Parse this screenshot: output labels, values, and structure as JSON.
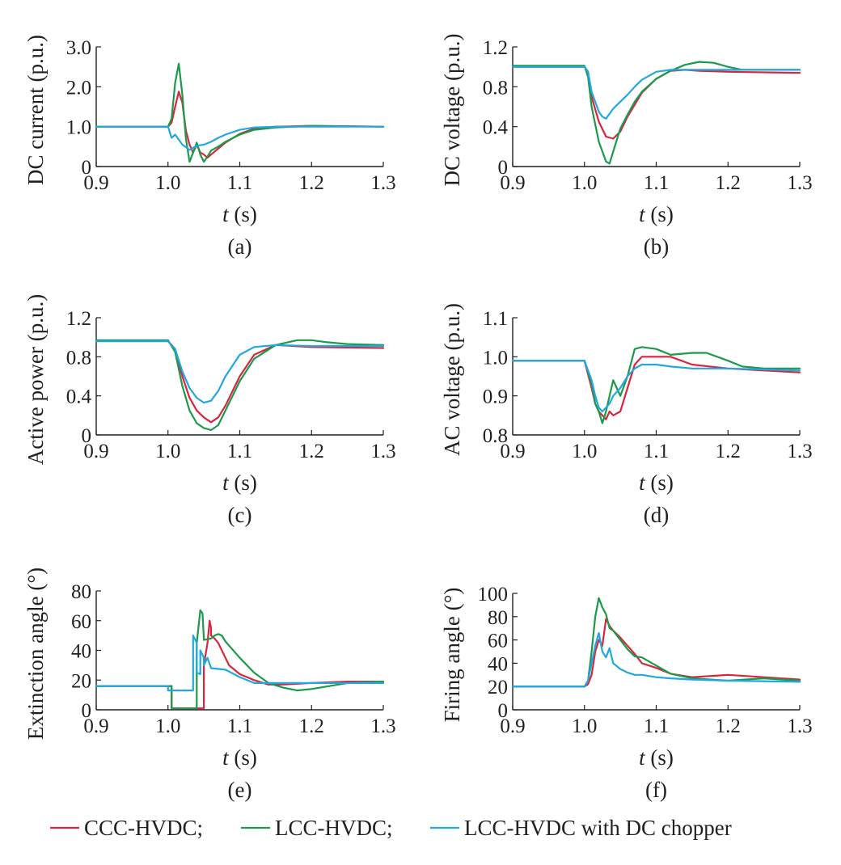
{
  "colors": {
    "ccc": "#d7263d",
    "lcc": "#1a9a4a",
    "chopper": "#22a7e0",
    "axis": "#231f20"
  },
  "legend": {
    "items": [
      {
        "key": "ccc",
        "label": "CCC-HVDC;"
      },
      {
        "key": "lcc",
        "label": "LCC-HVDC;"
      },
      {
        "key": "chopper",
        "label": "LCC-HVDC with DC chopper"
      }
    ]
  },
  "chart_data": [
    {
      "id": "a",
      "type": "line",
      "panel_label": "(a)",
      "ylabel": "DC current (p.u.)",
      "xlabel_italic": "t",
      "xlabel_rest": " (s)",
      "xlim": [
        0.9,
        1.3
      ],
      "ylim": [
        0,
        3.0
      ],
      "xticks": [
        "0.9",
        "1.0",
        "1.1",
        "1.2",
        "1.3"
      ],
      "xtick_values": [
        0.9,
        1.0,
        1.1,
        1.2,
        1.3
      ],
      "yticks": [
        "0",
        "1.0",
        "2.0",
        "3.0"
      ],
      "ytick_values": [
        0,
        1.0,
        2.0,
        3.0
      ],
      "series": [
        {
          "name": "CCC-HVDC",
          "color_key": "ccc",
          "x": [
            0.9,
            1.0,
            1.005,
            1.01,
            1.015,
            1.02,
            1.025,
            1.03,
            1.035,
            1.04,
            1.045,
            1.05,
            1.055,
            1.06,
            1.07,
            1.08,
            1.1,
            1.12,
            1.15,
            1.2,
            1.3
          ],
          "y": [
            1.0,
            1.0,
            1.1,
            1.5,
            1.88,
            1.6,
            0.9,
            0.55,
            0.35,
            0.55,
            0.35,
            0.3,
            0.22,
            0.3,
            0.45,
            0.6,
            0.82,
            0.95,
            1.0,
            1.02,
            1.0
          ]
        },
        {
          "name": "LCC-HVDC",
          "color_key": "lcc",
          "x": [
            0.9,
            1.0,
            1.005,
            1.01,
            1.015,
            1.02,
            1.025,
            1.03,
            1.035,
            1.04,
            1.045,
            1.05,
            1.055,
            1.06,
            1.07,
            1.08,
            1.1,
            1.12,
            1.15,
            1.2,
            1.3
          ],
          "y": [
            1.0,
            1.0,
            1.2,
            2.1,
            2.58,
            1.8,
            0.7,
            0.12,
            0.35,
            0.6,
            0.3,
            0.12,
            0.25,
            0.4,
            0.5,
            0.62,
            0.8,
            0.92,
            0.98,
            1.02,
            1.0
          ]
        },
        {
          "name": "LCC-HVDC with DC chopper",
          "color_key": "chopper",
          "x": [
            0.9,
            1.0,
            1.005,
            1.01,
            1.02,
            1.03,
            1.04,
            1.05,
            1.06,
            1.07,
            1.08,
            1.1,
            1.12,
            1.15,
            1.2,
            1.3
          ],
          "y": [
            1.0,
            1.0,
            0.72,
            0.8,
            0.55,
            0.42,
            0.52,
            0.55,
            0.62,
            0.72,
            0.8,
            0.92,
            0.98,
            1.0,
            1.0,
            1.0
          ]
        }
      ]
    },
    {
      "id": "b",
      "type": "line",
      "panel_label": "(b)",
      "ylabel": "DC voltage (p.u.)",
      "xlabel_italic": "t",
      "xlabel_rest": " (s)",
      "xlim": [
        0.9,
        1.3
      ],
      "ylim": [
        0,
        1.2
      ],
      "xticks": [
        "0.9",
        "1.0",
        "1.1",
        "1.2",
        "1.3"
      ],
      "xtick_values": [
        0.9,
        1.0,
        1.1,
        1.2,
        1.3
      ],
      "yticks": [
        "0",
        "0.4",
        "0.8",
        "1.2"
      ],
      "ytick_values": [
        0,
        0.4,
        0.8,
        1.2
      ],
      "series": [
        {
          "name": "CCC-HVDC",
          "color_key": "ccc",
          "x": [
            0.9,
            1.0,
            1.005,
            1.01,
            1.02,
            1.03,
            1.04,
            1.05,
            1.06,
            1.07,
            1.08,
            1.1,
            1.12,
            1.14,
            1.16,
            1.2,
            1.3
          ],
          "y": [
            1.0,
            1.0,
            0.95,
            0.7,
            0.45,
            0.3,
            0.28,
            0.35,
            0.5,
            0.62,
            0.74,
            0.88,
            0.96,
            0.97,
            0.96,
            0.95,
            0.94
          ]
        },
        {
          "name": "LCC-HVDC",
          "color_key": "lcc",
          "x": [
            0.9,
            1.0,
            1.005,
            1.01,
            1.02,
            1.03,
            1.035,
            1.04,
            1.05,
            1.06,
            1.07,
            1.08,
            1.1,
            1.12,
            1.14,
            1.16,
            1.18,
            1.2,
            1.22,
            1.25,
            1.3
          ],
          "y": [
            1.01,
            1.01,
            0.9,
            0.6,
            0.25,
            0.05,
            0.03,
            0.15,
            0.38,
            0.52,
            0.65,
            0.75,
            0.88,
            0.96,
            1.02,
            1.05,
            1.04,
            1.0,
            0.97,
            0.97,
            0.97
          ]
        },
        {
          "name": "LCC-HVDC with DC chopper",
          "color_key": "chopper",
          "x": [
            0.9,
            1.0,
            1.005,
            1.01,
            1.02,
            1.025,
            1.03,
            1.04,
            1.05,
            1.06,
            1.07,
            1.08,
            1.1,
            1.12,
            1.15,
            1.2,
            1.3
          ],
          "y": [
            1.0,
            1.0,
            0.95,
            0.75,
            0.55,
            0.5,
            0.48,
            0.58,
            0.65,
            0.72,
            0.8,
            0.87,
            0.95,
            0.97,
            0.97,
            0.97,
            0.97
          ]
        }
      ]
    },
    {
      "id": "c",
      "type": "line",
      "panel_label": "(c)",
      "ylabel": "Active power (p.u.)",
      "xlabel_italic": "t",
      "xlabel_rest": " (s)",
      "xlim": [
        0.9,
        1.3
      ],
      "ylim": [
        0,
        1.2
      ],
      "xticks": [
        "0.9",
        "1.0",
        "1.1",
        "1.2",
        "1.3"
      ],
      "xtick_values": [
        0.9,
        1.0,
        1.1,
        1.2,
        1.3
      ],
      "yticks": [
        "0",
        "0.4",
        "0.8",
        "1.2"
      ],
      "ytick_values": [
        0,
        0.4,
        0.8,
        1.2
      ],
      "series": [
        {
          "name": "CCC-HVDC",
          "color_key": "ccc",
          "x": [
            0.9,
            1.0,
            1.01,
            1.02,
            1.03,
            1.04,
            1.05,
            1.06,
            1.07,
            1.08,
            1.1,
            1.12,
            1.15,
            1.2,
            1.3
          ],
          "y": [
            0.96,
            0.96,
            0.88,
            0.6,
            0.38,
            0.25,
            0.18,
            0.13,
            0.18,
            0.3,
            0.6,
            0.82,
            0.92,
            0.9,
            0.89
          ]
        },
        {
          "name": "LCC-HVDC",
          "color_key": "lcc",
          "x": [
            0.9,
            1.0,
            1.01,
            1.02,
            1.03,
            1.04,
            1.05,
            1.06,
            1.07,
            1.08,
            1.1,
            1.12,
            1.15,
            1.18,
            1.2,
            1.22,
            1.25,
            1.3
          ],
          "y": [
            0.97,
            0.97,
            0.85,
            0.5,
            0.25,
            0.12,
            0.07,
            0.05,
            0.1,
            0.25,
            0.55,
            0.78,
            0.92,
            0.97,
            0.97,
            0.95,
            0.93,
            0.92
          ]
        },
        {
          "name": "LCC-HVDC with DC chopper",
          "color_key": "chopper",
          "x": [
            0.9,
            1.0,
            1.01,
            1.02,
            1.03,
            1.04,
            1.05,
            1.06,
            1.07,
            1.08,
            1.1,
            1.12,
            1.15,
            1.2,
            1.3
          ],
          "y": [
            0.96,
            0.96,
            0.88,
            0.65,
            0.48,
            0.38,
            0.33,
            0.35,
            0.45,
            0.6,
            0.82,
            0.9,
            0.92,
            0.91,
            0.91
          ]
        }
      ]
    },
    {
      "id": "d",
      "type": "line",
      "panel_label": "(d)",
      "ylabel": "AC voltage (p.u.)",
      "xlabel_italic": "t",
      "xlabel_rest": " (s)",
      "xlim": [
        0.9,
        1.3
      ],
      "ylim": [
        0.8,
        1.1
      ],
      "xticks": [
        "0.9",
        "1.0",
        "1.1",
        "1.2",
        "1.3"
      ],
      "xtick_values": [
        0.9,
        1.0,
        1.1,
        1.2,
        1.3
      ],
      "yticks": [
        "0.8",
        "0.9",
        "1.0",
        "1.1"
      ],
      "ytick_values": [
        0.8,
        0.9,
        1.0,
        1.1
      ],
      "series": [
        {
          "name": "CCC-HVDC",
          "color_key": "ccc",
          "x": [
            0.9,
            1.0,
            1.01,
            1.015,
            1.02,
            1.025,
            1.03,
            1.035,
            1.04,
            1.05,
            1.06,
            1.07,
            1.08,
            1.1,
            1.12,
            1.15,
            1.2,
            1.25,
            1.3
          ],
          "y": [
            0.99,
            0.99,
            0.92,
            0.88,
            0.86,
            0.85,
            0.84,
            0.86,
            0.85,
            0.86,
            0.92,
            0.98,
            1.0,
            1.0,
            1.0,
            0.98,
            0.97,
            0.965,
            0.96
          ]
        },
        {
          "name": "LCC-HVDC",
          "color_key": "lcc",
          "x": [
            0.9,
            1.0,
            1.01,
            1.015,
            1.02,
            1.025,
            1.03,
            1.035,
            1.04,
            1.045,
            1.05,
            1.06,
            1.07,
            1.08,
            1.1,
            1.12,
            1.15,
            1.17,
            1.2,
            1.22,
            1.25,
            1.3
          ],
          "y": [
            0.99,
            0.99,
            0.93,
            0.88,
            0.86,
            0.83,
            0.86,
            0.9,
            0.94,
            0.92,
            0.9,
            0.95,
            1.02,
            1.025,
            1.02,
            1.005,
            1.01,
            1.01,
            0.99,
            0.975,
            0.97,
            0.97
          ]
        },
        {
          "name": "LCC-HVDC with DC chopper",
          "color_key": "chopper",
          "x": [
            0.9,
            1.0,
            1.01,
            1.015,
            1.02,
            1.025,
            1.03,
            1.035,
            1.04,
            1.05,
            1.06,
            1.07,
            1.08,
            1.1,
            1.12,
            1.15,
            1.2,
            1.3
          ],
          "y": [
            0.99,
            0.99,
            0.94,
            0.9,
            0.87,
            0.86,
            0.87,
            0.88,
            0.9,
            0.92,
            0.95,
            0.97,
            0.98,
            0.98,
            0.975,
            0.97,
            0.97,
            0.965
          ]
        }
      ]
    },
    {
      "id": "e",
      "type": "line",
      "panel_label": "(e)",
      "ylabel": "Extinction angle (°)",
      "xlabel_italic": "t",
      "xlabel_rest": " (s)",
      "xlim": [
        0.9,
        1.3
      ],
      "ylim": [
        0,
        80
      ],
      "xticks": [
        "0.9",
        "1.0",
        "1.1",
        "1.2",
        "1.3"
      ],
      "xtick_values": [
        0.9,
        1.0,
        1.1,
        1.2,
        1.3
      ],
      "yticks": [
        "0",
        "20",
        "40",
        "60",
        "80"
      ],
      "ytick_values": [
        0,
        20,
        40,
        60,
        80
      ],
      "series": [
        {
          "name": "CCC-HVDC",
          "color_key": "ccc",
          "x": [
            0.9,
            1.005,
            1.005,
            1.045,
            1.05,
            1.05,
            1.055,
            1.058,
            1.06,
            1.06,
            1.065,
            1.07,
            1.075,
            1.08,
            1.085,
            1.09,
            1.1,
            1.12,
            1.14,
            1.16,
            1.2,
            1.25,
            1.3
          ],
          "y": [
            16,
            16,
            1,
            1,
            1,
            30,
            45,
            60,
            55,
            50,
            48,
            45,
            40,
            35,
            30,
            28,
            24,
            20,
            17,
            17,
            18,
            19,
            19
          ]
        },
        {
          "name": "LCC-HVDC",
          "color_key": "lcc",
          "x": [
            0.9,
            1.005,
            1.005,
            1.04,
            1.04,
            1.045,
            1.048,
            1.05,
            1.05,
            1.06,
            1.065,
            1.07,
            1.075,
            1.08,
            1.1,
            1.12,
            1.14,
            1.16,
            1.18,
            1.2,
            1.25,
            1.3
          ],
          "y": [
            16,
            16,
            1,
            1,
            45,
            67,
            65,
            48,
            47,
            48,
            50,
            51,
            50,
            46,
            35,
            25,
            18,
            15,
            13,
            14,
            18,
            19
          ]
        },
        {
          "name": "LCC-HVDC with DC chopper",
          "color_key": "chopper",
          "x": [
            0.9,
            1.0,
            1.0,
            1.035,
            1.035,
            1.04,
            1.04,
            1.045,
            1.045,
            1.05,
            1.05,
            1.055,
            1.06,
            1.08,
            1.1,
            1.12,
            1.15,
            1.2,
            1.3
          ],
          "y": [
            16,
            16,
            13,
            13,
            50,
            45,
            25,
            24,
            40,
            35,
            30,
            35,
            28,
            27,
            22,
            18,
            18,
            18,
            18
          ]
        }
      ]
    },
    {
      "id": "f",
      "type": "line",
      "panel_label": "(f)",
      "ylabel": "Firing angle (°)",
      "xlabel_italic": "t",
      "xlabel_rest": " (s)",
      "xlim": [
        0.9,
        1.3
      ],
      "ylim": [
        0,
        100
      ],
      "xticks": [
        "0.9",
        "1.0",
        "1.1",
        "1.2",
        "1.3"
      ],
      "xtick_values": [
        0.9,
        1.0,
        1.1,
        1.2,
        1.3
      ],
      "yticks": [
        "0",
        "20",
        "40",
        "60",
        "80",
        "100"
      ],
      "ytick_values": [
        0,
        20,
        40,
        60,
        80,
        100
      ],
      "series": [
        {
          "name": "CCC-HVDC",
          "color_key": "ccc",
          "x": [
            0.9,
            1.0,
            1.005,
            1.01,
            1.015,
            1.02,
            1.025,
            1.03,
            1.035,
            1.04,
            1.05,
            1.06,
            1.07,
            1.08,
            1.1,
            1.12,
            1.15,
            1.2,
            1.25,
            1.3
          ],
          "y": [
            20,
            20,
            22,
            30,
            50,
            60,
            55,
            78,
            72,
            68,
            62,
            55,
            48,
            40,
            36,
            31,
            28,
            30,
            28,
            26
          ]
        },
        {
          "name": "LCC-HVDC",
          "color_key": "lcc",
          "x": [
            0.9,
            1.0,
            1.005,
            1.01,
            1.015,
            1.02,
            1.025,
            1.03,
            1.035,
            1.04,
            1.05,
            1.06,
            1.07,
            1.08,
            1.1,
            1.12,
            1.15,
            1.2,
            1.25,
            1.3
          ],
          "y": [
            20,
            20,
            25,
            50,
            80,
            96,
            88,
            82,
            70,
            68,
            60,
            52,
            46,
            45,
            38,
            31,
            27,
            25,
            27,
            25
          ]
        },
        {
          "name": "LCC-HVDC with DC chopper",
          "color_key": "chopper",
          "x": [
            0.9,
            1.0,
            1.005,
            1.01,
            1.015,
            1.02,
            1.025,
            1.03,
            1.035,
            1.04,
            1.05,
            1.06,
            1.07,
            1.08,
            1.1,
            1.12,
            1.15,
            1.2,
            1.3
          ],
          "y": [
            20,
            20,
            25,
            40,
            55,
            66,
            50,
            45,
            53,
            40,
            35,
            32,
            30,
            30,
            28,
            27,
            26,
            25,
            24
          ]
        }
      ]
    }
  ]
}
